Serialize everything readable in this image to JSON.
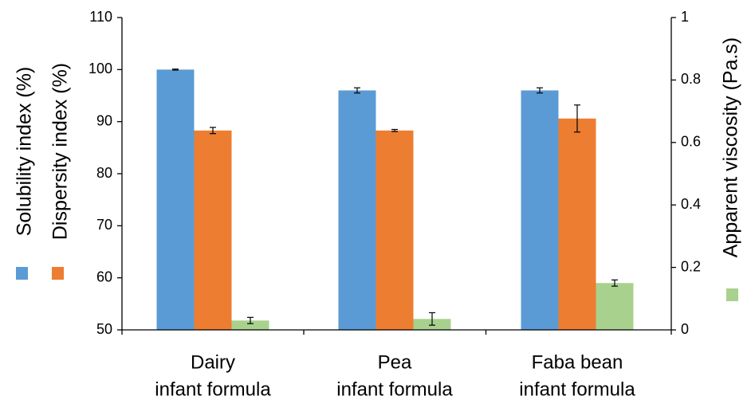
{
  "chart_data": {
    "type": "bar",
    "categories": [
      [
        "Dairy",
        "infant formula"
      ],
      [
        "Pea",
        "infant formula"
      ],
      [
        "Faba bean",
        "infant formula"
      ]
    ],
    "series": [
      {
        "name": "Solubility index (%)",
        "axis": "left",
        "color": "#5B9BD5",
        "values": [
          100,
          96,
          96
        ],
        "errors": [
          0.1,
          0.5,
          0.5
        ]
      },
      {
        "name": "Dispersity index (%)",
        "axis": "left",
        "color": "#ED7D31",
        "values": [
          88.3,
          88.3,
          90.6
        ],
        "errors": [
          0.6,
          0.2,
          2.6
        ]
      },
      {
        "name": "Apparent viscosity (Pa.s)",
        "axis": "right",
        "color": "#A9D18E",
        "values": [
          0.03,
          0.035,
          0.15
        ],
        "errors": [
          0.01,
          0.02,
          0.01
        ]
      }
    ],
    "left_axis": {
      "labels": [
        "Solubility index (%)",
        "Dispersity index (%)"
      ],
      "ylim": [
        50,
        110
      ],
      "ticks": [
        "50",
        "60",
        "70",
        "80",
        "90",
        "100",
        "110"
      ]
    },
    "right_axis": {
      "label": "Apparent viscosity (Pa.s)",
      "ylim": [
        0,
        1
      ],
      "ticks": [
        "0",
        "0.2",
        "0.4",
        "0.6",
        "0.8",
        "1"
      ]
    },
    "legend": "beside axis titles",
    "grid": false
  }
}
